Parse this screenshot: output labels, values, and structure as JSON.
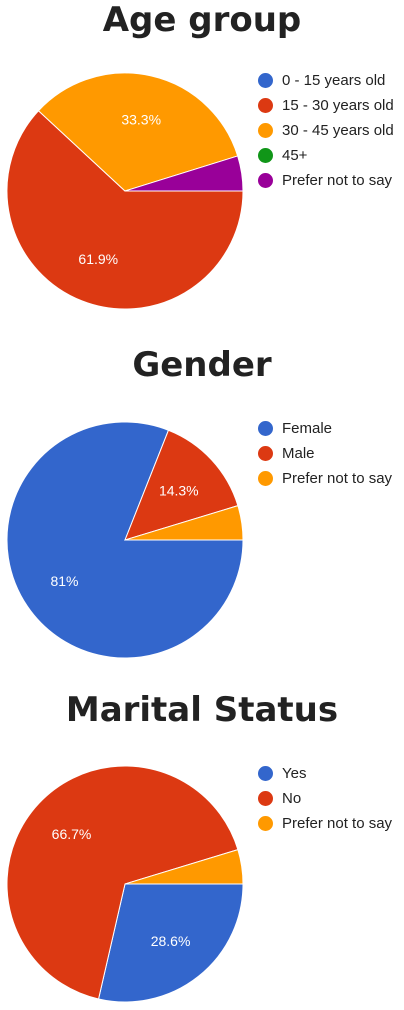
{
  "chart_data": [
    {
      "type": "pie",
      "title": "Age group",
      "categories": [
        "0 - 15 years old",
        "15 - 30 years old",
        "30 - 45 years old",
        "45+",
        "Prefer not to say"
      ],
      "values": [
        0,
        61.9,
        33.3,
        0,
        4.8
      ],
      "labels": [
        "",
        "61.9%",
        "33.3%",
        "",
        ""
      ],
      "colors": [
        "#3366cc",
        "#dc3912",
        "#ff9900",
        "#109618",
        "#990099"
      ],
      "legend_position": "right"
    },
    {
      "type": "pie",
      "title": "Gender",
      "categories": [
        "Female",
        "Male",
        "Prefer not to say"
      ],
      "values": [
        81,
        14.3,
        4.7
      ],
      "labels": [
        "81%",
        "14.3%",
        ""
      ],
      "colors": [
        "#3366cc",
        "#dc3912",
        "#ff9900"
      ],
      "legend_position": "right"
    },
    {
      "type": "pie",
      "title": "Marital Status",
      "categories": [
        "Yes",
        "No",
        "Prefer not to say"
      ],
      "values": [
        28.6,
        66.7,
        4.7
      ],
      "labels": [
        "28.6%",
        "66.7%",
        ""
      ],
      "colors": [
        "#3366cc",
        "#dc3912",
        "#ff9900"
      ],
      "legend_position": "right"
    }
  ]
}
